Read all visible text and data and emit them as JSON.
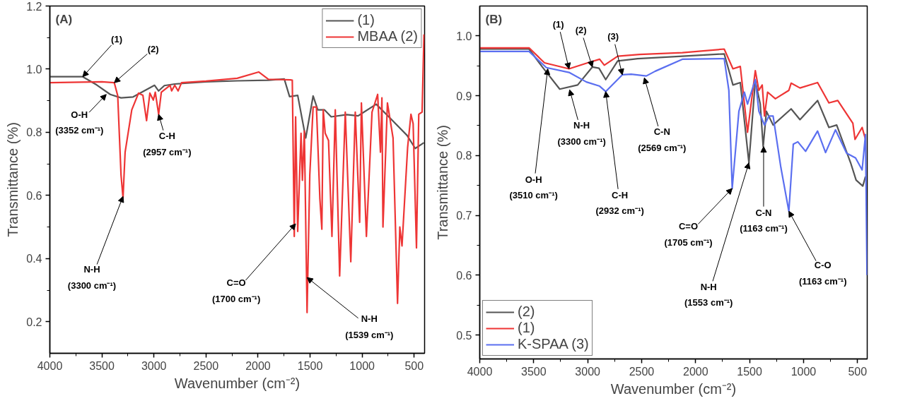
{
  "chart_data": [
    {
      "type": "line",
      "xlabel": "Wavenumber (cm⁻²)",
      "ylabel": "Transmittance (%)",
      "xlim": [
        4000,
        400
      ],
      "ylim": [
        0.1,
        1.2
      ],
      "xticks": [
        4000,
        3500,
        3000,
        2500,
        2000,
        1500,
        1000,
        500
      ],
      "yticks": [
        0.2,
        0.4,
        0.6,
        0.8,
        {
          "value": 1,
          "label": "1.0"
        },
        1.2
      ],
      "legend": "top right",
      "grid": false,
      "marker": "none",
      "line_style": "solid",
      "series": [
        {
          "name": "(1)",
          "color": "#555555",
          "x": [
            4000,
            3684,
            3550,
            3420,
            3316,
            3200,
            3100,
            2994,
            2955,
            2900,
            2800,
            2500,
            2200,
            1900,
            1748,
            1697,
            1619,
            1542,
            1471,
            1426,
            1361,
            1297,
            1148,
            1039,
            865,
            735,
            568,
            490,
            406
          ],
          "values": [
            0.976,
            0.976,
            0.95,
            0.92,
            0.909,
            0.912,
            0.93,
            0.949,
            0.931,
            0.948,
            0.953,
            0.96,
            0.963,
            0.965,
            0.969,
            0.913,
            0.917,
            0.782,
            0.915,
            0.871,
            0.871,
            0.849,
            0.856,
            0.852,
            0.889,
            0.846,
            0.79,
            0.749,
            0.767
          ]
        },
        {
          "name": "MBAA (2)",
          "color": "#ee3535",
          "x": [
            4000,
            3500,
            3381,
            3348,
            3316,
            3297,
            3277,
            3213,
            3148,
            3106,
            3071,
            3039,
            3006,
            2987,
            2955,
            2929,
            2845,
            2830,
            2800,
            2768,
            2735,
            2500,
            2200,
            1994,
            1900,
            1690,
            1671,
            1652,
            1639,
            1619,
            1587,
            1574,
            1555,
            1529,
            1503,
            1471,
            1439,
            1406,
            1387,
            1374,
            1355,
            1323,
            1290,
            1258,
            1216,
            1162,
            1109,
            1066,
            1024,
            1007,
            959,
            905,
            851,
            824,
            810,
            800,
            757,
            703,
            660,
            638,
            617,
            563,
            531,
            510,
            478,
            456,
            424,
            406
          ],
          "values": [
            0.957,
            0.96,
            0.957,
            0.916,
            0.664,
            0.592,
            0.737,
            0.871,
            0.924,
            0.917,
            0.837,
            0.924,
            0.902,
            0.927,
            0.857,
            0.927,
            0.949,
            0.931,
            0.949,
            0.931,
            0.957,
            0.962,
            0.971,
            0.991,
            0.968,
            0.966,
            0.965,
            0.47,
            0.849,
            0.486,
            0.797,
            0.648,
            0.804,
            0.229,
            0.664,
            0.88,
            0.88,
            0.59,
            0.493,
            0.871,
            0.797,
            0.774,
            0.47,
            0.871,
            0.345,
            0.864,
            0.39,
            0.864,
            0.515,
            0.893,
            0.47,
            0.864,
            0.92,
            0.737,
            0.909,
            0.5,
            0.893,
            0.782,
            0.258,
            0.5,
            0.44,
            0.752,
            0.857,
            0.827,
            0.434,
            0.857,
            0.864,
            1.11
          ]
        }
      ],
      "annotations": [
        "(A)",
        {
          "text": "(1)",
          "x": 3684,
          "y": 0.976
        },
        {
          "text": "(2)",
          "x": 3381,
          "y": 0.957
        },
        {
          "text": "O-H\n(3352 cm⁻¹)",
          "x": 3458,
          "y": 0.92
        },
        {
          "text": "C-H\n(2957 cm⁻¹)",
          "x": 2955,
          "y": 0.857
        },
        {
          "text": "N-H\n(3300 cm⁻¹)",
          "x": 3297,
          "y": 0.597
        },
        {
          "text": "C=O\n(1700 cm⁻¹)",
          "x": 1639,
          "y": 0.51
        },
        {
          "text": "N-H\n(1539 cm⁻¹)",
          "x": 1529,
          "y": 0.34
        }
      ]
    },
    {
      "type": "line",
      "xlabel": "Wavenumber (cm⁻²)",
      "ylabel": "Transmittance (%)",
      "xlim": [
        4000,
        410
      ],
      "ylim": [
        0.46,
        1.05
      ],
      "xticks": [
        4000,
        3500,
        3000,
        2500,
        2000,
        1500,
        1000,
        500
      ],
      "yticks": [
        0.5,
        0.6,
        0.7,
        0.8,
        0.9,
        {
          "value": 1,
          "label": "1.0"
        }
      ],
      "legend": "bottom left",
      "grid": false,
      "marker": "none",
      "line_style": "solid",
      "series": [
        {
          "name": "(2)",
          "color": "#555555",
          "x": [
            4000,
            3543,
            3420,
            3259,
            3093,
            2957,
            2895,
            2833,
            2722,
            2537,
            2123,
            1735,
            1654,
            1586,
            1506,
            1447,
            1401,
            1374,
            1344,
            1282,
            1115,
            1033,
            870,
            765,
            693,
            564,
            513,
            451,
            426
          ],
          "values": [
            0.978,
            0.978,
            0.948,
            0.911,
            0.918,
            0.948,
            0.946,
            0.927,
            0.958,
            0.962,
            0.966,
            0.97,
            0.918,
            0.922,
            0.788,
            0.925,
            0.886,
            0.815,
            0.874,
            0.851,
            0.878,
            0.86,
            0.892,
            0.847,
            0.851,
            0.788,
            0.759,
            0.749,
            0.765
          ]
        },
        {
          "name": "(1)",
          "color": "#ee3535",
          "x": [
            4000,
            3543,
            3400,
            3173,
            3000,
            2889,
            2846,
            2722,
            2519,
            2123,
            1735,
            1654,
            1586,
            1519,
            1447,
            1414,
            1383,
            1362,
            1333,
            1261,
            1136,
            1115,
            1033,
            870,
            765,
            683,
            543,
            523,
            457,
            426
          ],
          "values": [
            0.98,
            0.98,
            0.955,
            0.945,
            0.955,
            0.961,
            0.951,
            0.966,
            0.969,
            0.972,
            0.978,
            0.945,
            0.949,
            0.839,
            0.942,
            0.909,
            0.918,
            0.866,
            0.906,
            0.895,
            0.909,
            0.921,
            0.913,
            0.922,
            0.888,
            0.892,
            0.854,
            0.827,
            0.847,
            0.827
          ]
        },
        {
          "name": "K-SPAA (3)",
          "color": "#5b6ff0",
          "x": [
            4000,
            3543,
            3383,
            3173,
            3012,
            2889,
            2833,
            2679,
            2597,
            2457,
            2374,
            2123,
            1735,
            1692,
            1661,
            1599,
            1548,
            1519,
            1447,
            1414,
            1362,
            1321,
            1282,
            1210,
            1136,
            1095,
            1053,
            981,
            870,
            796,
            704,
            601,
            518,
            457,
            426,
            412
          ],
          "values": [
            0.974,
            0.974,
            0.947,
            0.939,
            0.923,
            0.916,
            0.907,
            0.935,
            0.936,
            0.933,
            0.941,
            0.961,
            0.962,
            0.909,
            0.745,
            0.874,
            0.906,
            0.886,
            0.927,
            0.874,
            0.851,
            0.866,
            0.866,
            0.78,
            0.707,
            0.819,
            0.823,
            0.807,
            0.841,
            0.805,
            0.843,
            0.804,
            0.796,
            0.776,
            0.835,
            0.6
          ]
        }
      ],
      "annotations": [
        "(B)",
        {
          "text": "(1)",
          "x": 3173,
          "y": 0.945
        },
        {
          "text": "(2)",
          "x": 2957,
          "y": 0.948
        },
        {
          "text": "(3)",
          "x": 2679,
          "y": 0.935
        },
        {
          "text": "O-H\n(3510 cm⁻¹)",
          "x": 3370,
          "y": 0.945
        },
        {
          "text": "N-H\n(3300 cm⁻¹)",
          "x": 3167,
          "y": 0.91
        },
        {
          "text": "C-H\n(2932 cm⁻¹)",
          "x": 2833,
          "y": 0.907
        },
        {
          "text": "C-N\n(2569 cm⁻¹)",
          "x": 2475,
          "y": 0.93
        },
        {
          "text": "C=O\n(1705 cm⁻¹)",
          "x": 1661,
          "y": 0.745
        },
        {
          "text": "N-H\n(1553 cm⁻¹)",
          "x": 1506,
          "y": 0.788
        },
        {
          "text": "C-N\n(1163 cm⁻¹)",
          "x": 1370,
          "y": 0.815
        },
        {
          "text": "C-O\n(1163 cm⁻¹)",
          "x": 1136,
          "y": 0.707
        }
      ]
    }
  ]
}
